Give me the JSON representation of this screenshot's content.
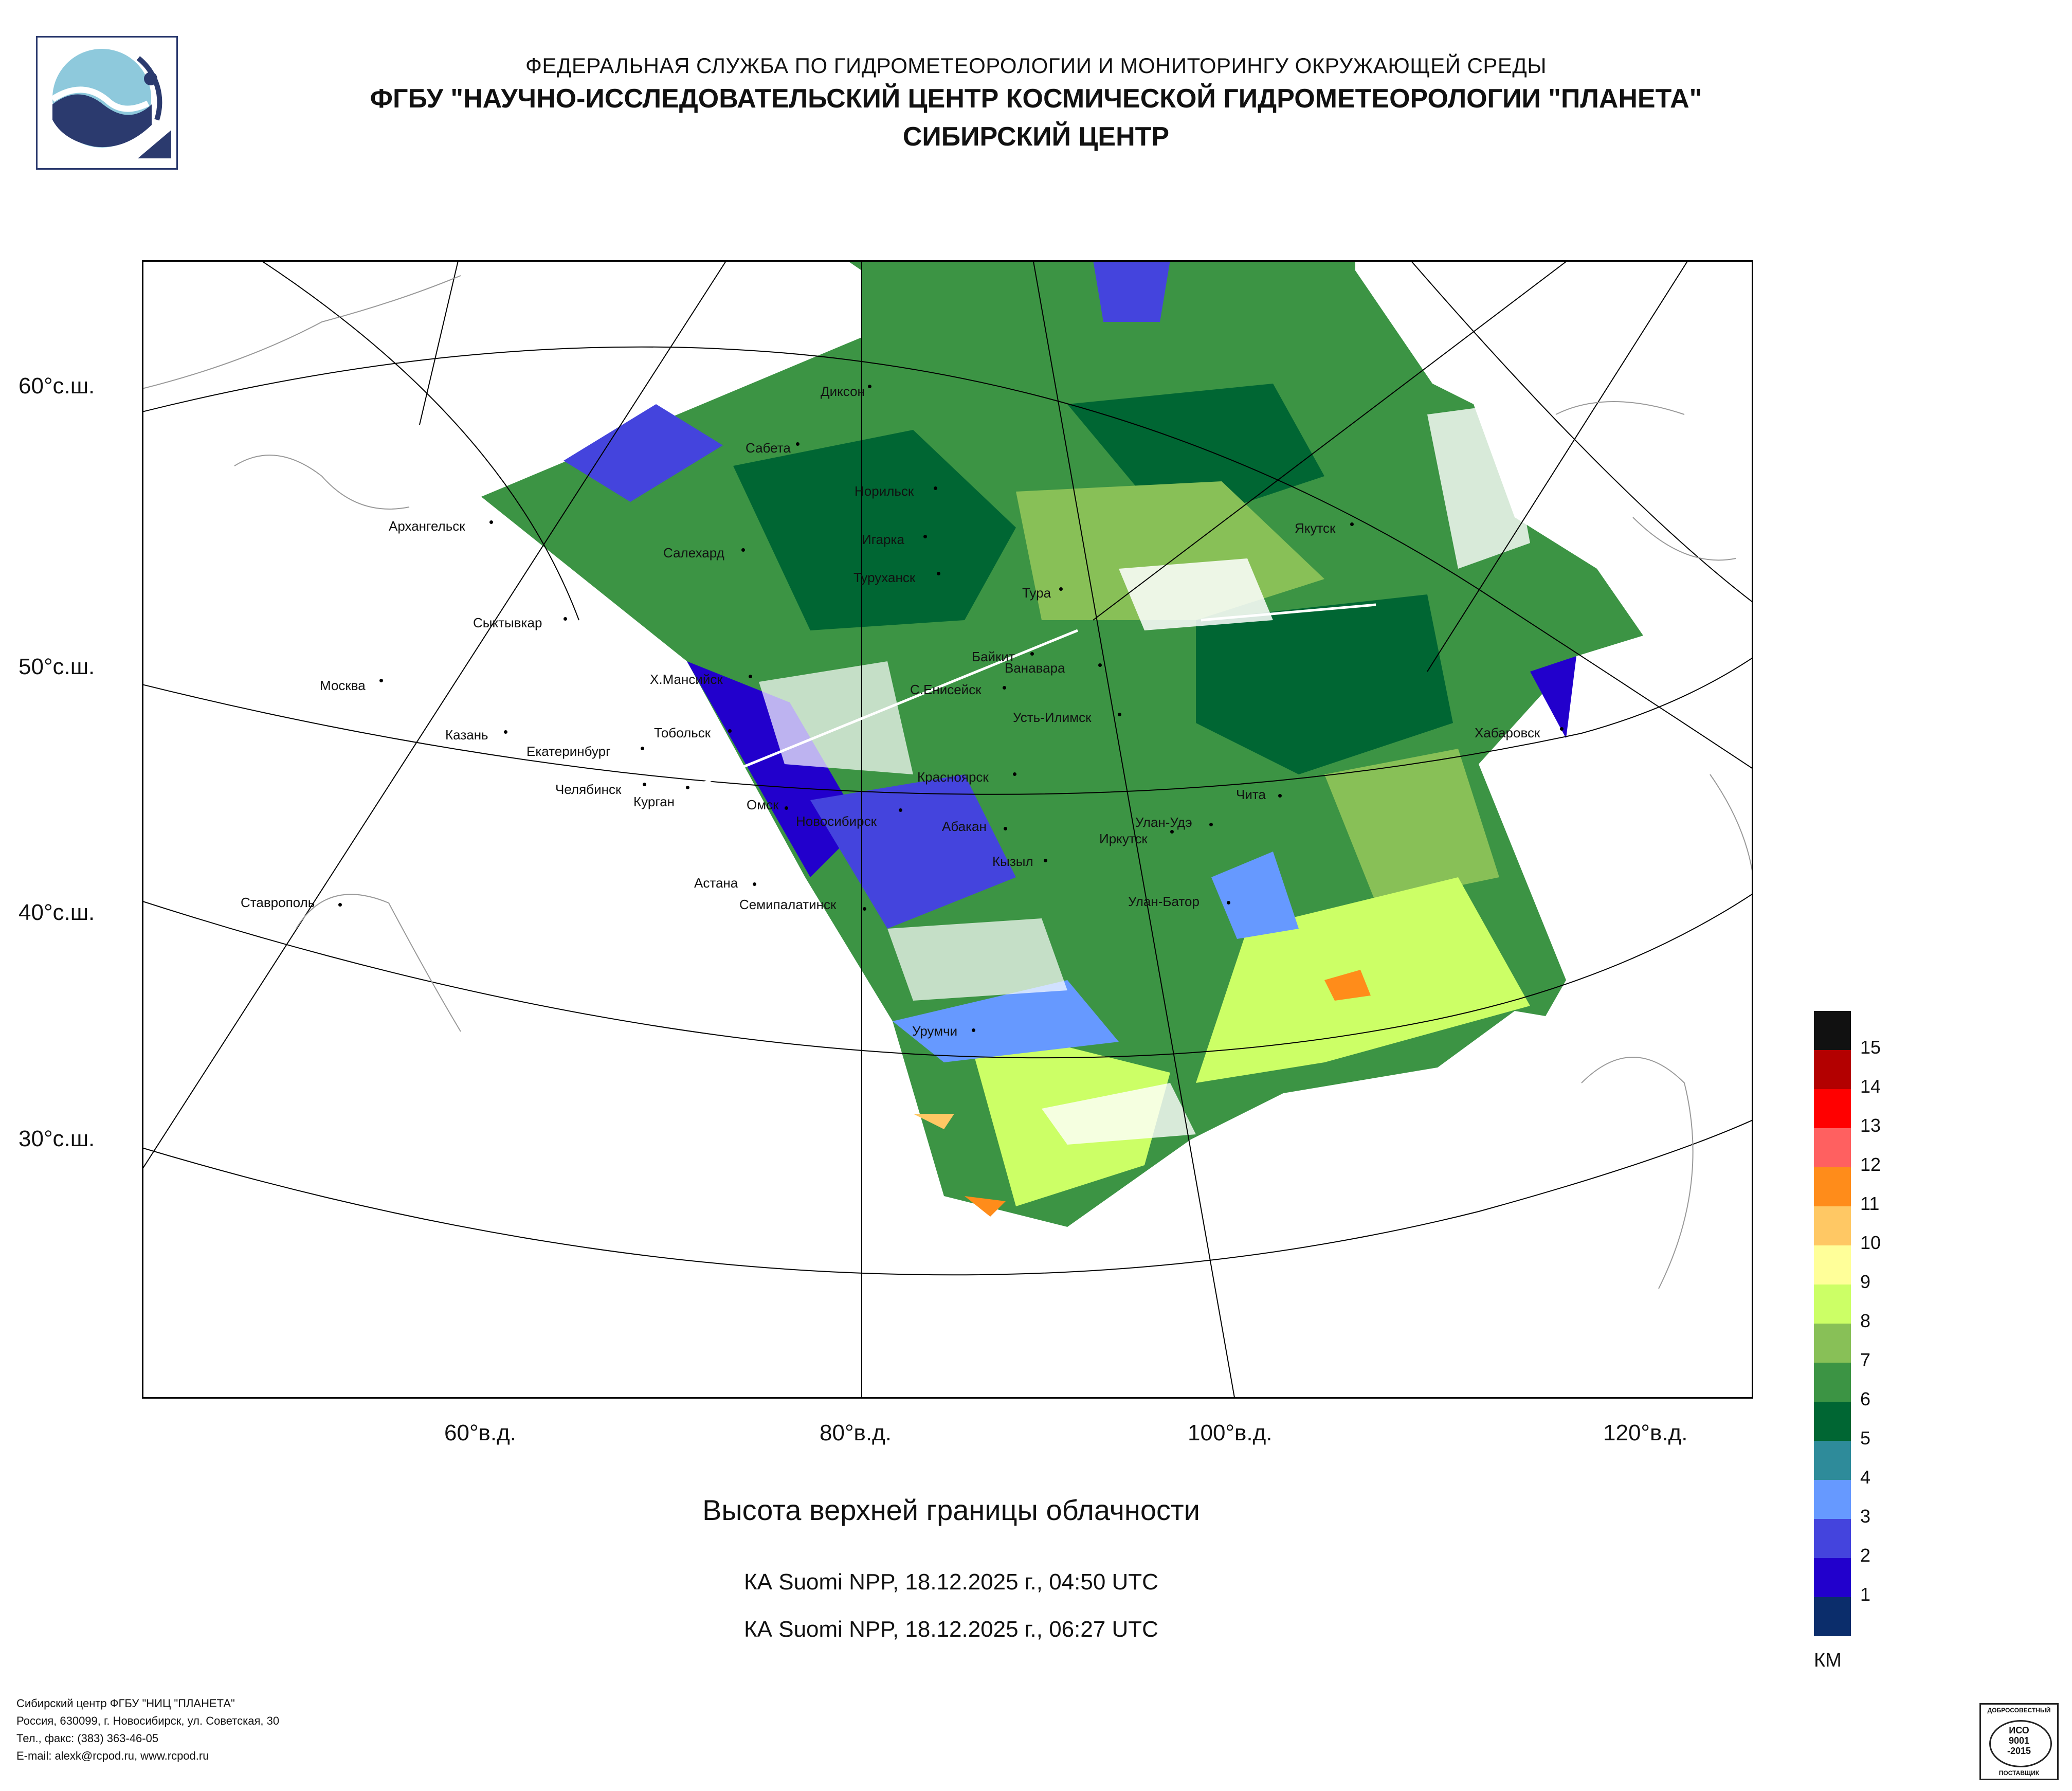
{
  "header": {
    "agency": "ФЕДЕРАЛЬНАЯ СЛУЖБА ПО ГИДРОМЕТЕОРОЛОГИИ И МОНИТОРИНГУ ОКРУЖАЮЩЕЙ СРЕДЫ",
    "institute": "ФГБУ \"НАУЧНО-ИССЛЕДОВАТЕЛЬСКИЙ ЦЕНТР КОСМИЧЕСКОЙ ГИДРОМЕТЕОРОЛОГИИ \"ПЛАНЕТА\"",
    "center": "СИБИРСКИЙ ЦЕНТР"
  },
  "map": {
    "lat_labels": [
      "60°с.ш.",
      "50°с.ш.",
      "40°с.ш.",
      "30°с.ш."
    ],
    "lon_labels": [
      "60°в.д.",
      "80°в.д.",
      "100°в.д.",
      "120°в.д."
    ],
    "cities": [
      "Диксон",
      "Сабета",
      "Норильск",
      "Архангельск",
      "Игарка",
      "Салехард",
      "Туруханск",
      "Тура",
      "Якутск",
      "Сыктывкар",
      "Байкит",
      "Ванавара",
      "Х.Мансийск",
      "С.Енисейск",
      "Москва",
      "Усть-Илимск",
      "Казань",
      "Тобольск",
      "Хабаровск",
      "Екатеринбург",
      "Красноярск",
      "Челябинск",
      "Курган",
      "Чита",
      "Омск",
      "Новосибирск",
      "Абакан",
      "Улан-Удэ",
      "Иркутск",
      "Кызыл",
      "Астана",
      "Улан-Батор",
      "Семипалатинск",
      "Ставрополь",
      "Урумчи"
    ]
  },
  "legend": {
    "levels": [
      "15",
      "14",
      "13",
      "12",
      "11",
      "10",
      "9",
      "8",
      "7",
      "6",
      "5",
      "4",
      "3",
      "2",
      "1"
    ],
    "colors": [
      "#111111",
      "#b30000",
      "#ff0000",
      "#ff6060",
      "#ff8c1a",
      "#ffc864",
      "#ffff99",
      "#ccff66",
      "#88c057",
      "#3c9444",
      "#006633",
      "#2e8b9a",
      "#6699ff",
      "#4444dd",
      "#2200cc",
      "#0b2d6b"
    ],
    "unit": "КМ"
  },
  "product": {
    "title": "Высота верхней границы облачности",
    "passes": [
      "КА Suomi NPP, 18.12.2025 г., 04:50 UTC",
      "КА Suomi NPP, 18.12.2025 г., 06:27 UTC"
    ]
  },
  "footer": {
    "lines": [
      "Сибирский центр ФГБУ \"НИЦ \"ПЛАНЕТА\"",
      "Россия, 630099, г. Новосибирск, ул. Советская, 30",
      "Тел., факс: (383) 363-46-05",
      "E-mail: alexk@rcpod.ru, www.rcpod.ru"
    ]
  },
  "certificate": {
    "top": "ДОБРОСОВЕСТНЫЙ",
    "line1": "ИСО",
    "line2": "9001",
    "line3": "-2015",
    "bottom": "ПОСТАВЩИК"
  },
  "icons": {
    "logo": "planeta-logo-icon",
    "cert": "iso-certificate-icon"
  }
}
